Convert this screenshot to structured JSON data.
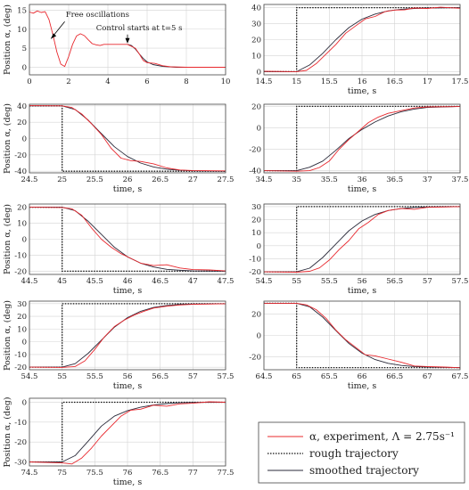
{
  "colors": {
    "experiment": "#e8282e",
    "rough": "#111111",
    "smoothed": "#2a2a3a",
    "grid": "#d4d4d4",
    "axis": "#444444"
  },
  "legend": {
    "experiment": "α, experiment, Λ = 2.75s⁻¹",
    "rough": "rough trajectory",
    "smoothed": "smoothed trajectory"
  },
  "chart_data": [
    {
      "type": "line",
      "ylabel": "Position α, (deg)",
      "xlabel": "",
      "xlim": [
        0,
        10
      ],
      "ylim": [
        -2,
        16.5
      ],
      "xticks": [
        0,
        2,
        4,
        6,
        8,
        10
      ],
      "yticks": [
        0,
        5,
        10,
        15
      ],
      "annotations": [
        {
          "text": "Free oscillations",
          "arrow_to": [
            1.1,
            7.5
          ]
        },
        {
          "text": "Control starts at t=5 s",
          "arrow_to": [
            5,
            6.5
          ]
        }
      ],
      "series": [
        {
          "name": "experiment",
          "style": "experiment",
          "x": [
            0,
            0.2,
            0.4,
            0.6,
            0.8,
            1.0,
            1.2,
            1.4,
            1.6,
            1.8,
            2.0,
            2.2,
            2.4,
            2.6,
            2.8,
            3.0,
            3.2,
            3.4,
            3.6,
            3.8,
            4.0,
            4.5,
            5.0,
            5.2,
            5.4,
            5.6,
            5.8,
            6.0,
            6.4,
            6.8,
            7.2,
            8.0,
            9.0,
            10.0
          ],
          "y": [
            14.5,
            14.2,
            14.8,
            14.4,
            14.6,
            12.5,
            8.5,
            4.0,
            0.8,
            0.2,
            2.8,
            6.0,
            8.2,
            8.8,
            8.3,
            7.2,
            6.2,
            5.9,
            5.7,
            6.0,
            6.0,
            6.0,
            6.0,
            5.5,
            5.0,
            3.5,
            1.8,
            1.2,
            1.0,
            0.4,
            0.1,
            0.0,
            0.0,
            0.0
          ]
        },
        {
          "name": "smoothed",
          "style": "smoothed",
          "x": [
            5.0,
            5.2,
            5.4,
            5.6,
            5.8,
            6.0,
            6.3,
            6.8,
            7.5,
            8.0
          ],
          "y": [
            6.0,
            5.7,
            4.8,
            3.5,
            2.3,
            1.4,
            0.7,
            0.2,
            0.0,
            0.0
          ]
        }
      ]
    },
    {
      "type": "line",
      "ylabel": "",
      "xlabel": "time, s",
      "xlim": [
        14.5,
        17.5
      ],
      "ylim": [
        -2,
        42
      ],
      "xticks": [
        14.5,
        15,
        15.5,
        16,
        16.5,
        17,
        17.5
      ],
      "yticks": [
        0,
        10,
        20,
        30,
        40
      ],
      "series": [
        {
          "name": "rough",
          "style": "rough",
          "x": [
            14.5,
            15.0,
            15.0,
            17.5
          ],
          "y": [
            0,
            0,
            40,
            40
          ]
        },
        {
          "name": "smoothed",
          "style": "smoothed",
          "x": [
            14.5,
            15.0,
            15.2,
            15.4,
            15.6,
            15.8,
            16.0,
            16.2,
            16.4,
            16.6,
            16.8,
            17.0,
            17.5
          ],
          "y": [
            0,
            0,
            4.2,
            11.5,
            20.0,
            27.5,
            32.8,
            36.0,
            38.0,
            39.0,
            39.5,
            39.8,
            40.0
          ]
        },
        {
          "name": "experiment",
          "style": "experiment",
          "x": [
            14.5,
            15.0,
            15.15,
            15.3,
            15.45,
            15.6,
            15.75,
            15.9,
            16.05,
            16.2,
            16.35,
            16.5,
            16.65,
            16.8,
            17.0,
            17.2,
            17.5
          ],
          "y": [
            0.2,
            0.0,
            0.8,
            5.0,
            11.0,
            17.0,
            24.0,
            28.5,
            33.0,
            34.5,
            37.5,
            38.5,
            38.6,
            39.8,
            39.5,
            40.3,
            39.6
          ]
        }
      ]
    },
    {
      "type": "line",
      "ylabel": "Position α, (deg)",
      "xlabel": "time, s",
      "xlim": [
        24.5,
        27.5
      ],
      "ylim": [
        -42,
        42
      ],
      "xticks": [
        24.5,
        25,
        25.5,
        26,
        26.5,
        27,
        27.5
      ],
      "yticks": [
        -40,
        -20,
        0,
        20,
        40
      ],
      "series": [
        {
          "name": "rough",
          "style": "rough",
          "x": [
            24.5,
            25.0,
            25.0,
            27.5
          ],
          "y": [
            40,
            40,
            -40,
            -40
          ]
        },
        {
          "name": "smoothed",
          "style": "smoothed",
          "x": [
            24.5,
            25.0,
            25.2,
            25.4,
            25.6,
            25.8,
            26.0,
            26.2,
            26.4,
            26.6,
            26.8,
            27.0,
            27.5
          ],
          "y": [
            40,
            40,
            35.6,
            22.5,
            6.0,
            -10.0,
            -22.0,
            -30.0,
            -34.8,
            -37.5,
            -38.8,
            -39.5,
            -40.0
          ]
        },
        {
          "name": "experiment",
          "style": "experiment",
          "x": [
            24.5,
            25.0,
            25.15,
            25.3,
            25.45,
            25.6,
            25.75,
            25.9,
            26.05,
            26.2,
            26.4,
            26.6,
            26.8,
            27.0,
            27.5
          ],
          "y": [
            40.2,
            40,
            38.0,
            30.0,
            18.0,
            5.0,
            -12.0,
            -24.0,
            -27.0,
            -28.0,
            -31.0,
            -36.0,
            -38.5,
            -39.2,
            -39.6
          ]
        }
      ]
    },
    {
      "type": "line",
      "ylabel": "",
      "xlabel": "time, s",
      "xlim": [
        34.5,
        37.5
      ],
      "ylim": [
        -42,
        22
      ],
      "xticks": [
        34.5,
        35,
        35.5,
        36,
        36.5,
        37,
        37.5
      ],
      "yticks": [
        -40,
        -20,
        0,
        20
      ],
      "series": [
        {
          "name": "rough",
          "style": "rough",
          "x": [
            34.5,
            35.0,
            35.0,
            37.5
          ],
          "y": [
            -40,
            -40,
            20,
            20
          ]
        },
        {
          "name": "smoothed",
          "style": "smoothed",
          "x": [
            34.5,
            35.0,
            35.2,
            35.4,
            35.6,
            35.8,
            36.0,
            36.2,
            36.4,
            36.6,
            36.8,
            37.0,
            37.5
          ],
          "y": [
            -40,
            -40,
            -36.8,
            -31.0,
            -21.0,
            -10.0,
            -1.5,
            5.5,
            11.0,
            15.0,
            17.5,
            19.0,
            20.0
          ]
        },
        {
          "name": "experiment",
          "style": "experiment",
          "x": [
            34.5,
            35.0,
            35.2,
            35.35,
            35.5,
            35.65,
            35.8,
            35.95,
            36.1,
            36.25,
            36.4,
            36.6,
            36.8,
            37.0,
            37.5
          ],
          "y": [
            -40,
            -40.5,
            -40.0,
            -37.0,
            -31.0,
            -20.0,
            -11.0,
            -3.0,
            5.0,
            10.0,
            13.5,
            16.0,
            18.5,
            19.5,
            19.8
          ]
        }
      ]
    },
    {
      "type": "line",
      "ylabel": "Position α, (deg)",
      "xlabel": "time, s",
      "xlim": [
        44.5,
        47.5
      ],
      "ylim": [
        -22,
        22
      ],
      "xticks": [
        44.5,
        45,
        45.5,
        46,
        46.5,
        47,
        47.5
      ],
      "yticks": [
        -20,
        -10,
        0,
        10,
        20
      ],
      "series": [
        {
          "name": "rough",
          "style": "rough",
          "x": [
            44.5,
            45.0,
            45.0,
            47.5
          ],
          "y": [
            20,
            20,
            -20,
            -20
          ]
        },
        {
          "name": "smoothed",
          "style": "smoothed",
          "x": [
            44.5,
            45.0,
            45.2,
            45.4,
            45.6,
            45.8,
            46.0,
            46.2,
            46.4,
            46.6,
            46.8,
            47.0,
            47.5
          ],
          "y": [
            20,
            20,
            17.8,
            11.2,
            3.0,
            -5.0,
            -11.0,
            -15.0,
            -17.4,
            -18.8,
            -19.4,
            -19.8,
            -20.0
          ]
        },
        {
          "name": "experiment",
          "style": "experiment",
          "x": [
            44.5,
            45.0,
            45.15,
            45.3,
            45.45,
            45.6,
            45.75,
            45.9,
            46.05,
            46.2,
            46.4,
            46.6,
            46.8,
            47.0,
            47.25,
            47.5
          ],
          "y": [
            20,
            19.8,
            19.0,
            15.0,
            7.0,
            0.0,
            -5.0,
            -9.0,
            -12.0,
            -15.0,
            -16.5,
            -16.0,
            -18.0,
            -19.0,
            -19.2,
            -19.8
          ]
        }
      ]
    },
    {
      "type": "line",
      "ylabel": "",
      "xlabel": "time, s",
      "xlim": [
        54.5,
        57.5
      ],
      "ylim": [
        -22,
        32
      ],
      "xticks": [
        54.5,
        55,
        55.5,
        56,
        56.5,
        57,
        57.5
      ],
      "yticks": [
        -20,
        -10,
        0,
        10,
        20,
        30
      ],
      "series": [
        {
          "name": "rough",
          "style": "rough",
          "x": [
            54.5,
            55.0,
            55.0,
            57.5
          ],
          "y": [
            -20,
            -20,
            30,
            30
          ]
        },
        {
          "name": "smoothed",
          "style": "smoothed",
          "x": [
            54.5,
            55.0,
            55.2,
            55.4,
            55.6,
            55.8,
            56.0,
            56.2,
            56.4,
            56.6,
            56.8,
            57.0,
            57.5
          ],
          "y": [
            -20,
            -20,
            -17.2,
            -9.0,
            1.3,
            11.5,
            19.0,
            24.0,
            27.0,
            28.5,
            29.4,
            29.7,
            30.0
          ]
        },
        {
          "name": "experiment",
          "style": "experiment",
          "x": [
            54.5,
            55.0,
            55.2,
            55.35,
            55.5,
            55.65,
            55.8,
            55.95,
            56.1,
            56.25,
            56.4,
            56.6,
            56.8,
            57.0,
            57.5
          ],
          "y": [
            -20,
            -20.3,
            -19.6,
            -17.0,
            -11.0,
            -3.0,
            4.0,
            13.0,
            18.0,
            24.0,
            27.0,
            28.5,
            28.0,
            29.5,
            30.0
          ]
        }
      ]
    },
    {
      "type": "line",
      "ylabel": "Position α, (deg)",
      "xlabel": "time, s",
      "xlim": [
        54.5,
        57.5
      ],
      "ylim": [
        -22,
        32
      ],
      "xticks": [
        54.5,
        55,
        55.5,
        56,
        56.5,
        57,
        57.5
      ],
      "yticks": [
        -20,
        -10,
        0,
        10,
        20,
        30
      ],
      "series": [
        {
          "name": "rough",
          "style": "rough",
          "x": [
            54.5,
            55.0,
            55.0,
            57.5
          ],
          "y": [
            -20,
            -20,
            30,
            30
          ]
        },
        {
          "name": "smoothed",
          "style": "smoothed",
          "x": [
            54.5,
            55.0,
            55.2,
            55.4,
            55.6,
            55.8,
            56.0,
            56.2,
            56.4,
            56.6,
            56.8,
            57.0,
            57.5
          ],
          "y": [
            -20,
            -20,
            -17.2,
            -9.0,
            1.3,
            11.5,
            19.0,
            24.0,
            27.0,
            28.5,
            29.4,
            29.7,
            30.0
          ]
        },
        {
          "name": "experiment",
          "style": "experiment",
          "x": [
            54.5,
            55.0,
            55.2,
            55.35,
            55.5,
            55.65,
            55.8,
            55.95,
            56.1,
            56.25,
            56.4,
            56.6,
            56.8,
            57.0,
            57.5
          ],
          "y": [
            -20,
            -20.2,
            -19.5,
            -15.0,
            -6.0,
            4.0,
            12.0,
            17.0,
            21.0,
            24.0,
            26.5,
            28.0,
            29.0,
            29.5,
            30.0
          ]
        }
      ]
    },
    {
      "type": "line",
      "ylabel": "",
      "xlabel": "time, s",
      "xlim": [
        64.5,
        67.5
      ],
      "ylim": [
        -32,
        32
      ],
      "xticks": [
        64.5,
        65,
        65.5,
        66,
        66.5,
        67,
        67.5
      ],
      "yticks": [
        -20,
        0,
        20
      ],
      "series": [
        {
          "name": "rough",
          "style": "rough",
          "x": [
            64.5,
            65.0,
            65.0,
            67.5
          ],
          "y": [
            30,
            30,
            -30,
            -30
          ]
        },
        {
          "name": "smoothed",
          "style": "smoothed",
          "x": [
            64.5,
            65.0,
            65.2,
            65.4,
            65.6,
            65.8,
            66.0,
            66.2,
            66.4,
            66.6,
            66.8,
            67.0,
            67.5
          ],
          "y": [
            30,
            30,
            26.7,
            17.0,
            4.5,
            -7.5,
            -16.5,
            -22.5,
            -26.0,
            -28.0,
            -29.0,
            -29.6,
            -30.0
          ]
        },
        {
          "name": "experiment",
          "style": "experiment",
          "x": [
            64.5,
            65.0,
            65.15,
            65.3,
            65.45,
            65.6,
            65.75,
            65.9,
            66.05,
            66.2,
            66.4,
            66.6,
            66.8,
            67.0,
            67.25,
            67.5
          ],
          "y": [
            30,
            30,
            28.5,
            24.0,
            16.0,
            5.0,
            -4.0,
            -11.0,
            -18.0,
            -19.0,
            -22.0,
            -25.0,
            -28.5,
            -29.0,
            -29.5,
            -30.2
          ]
        }
      ]
    },
    {
      "type": "line",
      "ylabel": "Position α, (deg)",
      "xlabel": "time, s",
      "xlim": [
        74.5,
        77.5
      ],
      "ylim": [
        -32,
        2
      ],
      "xticks": [
        74.5,
        75,
        75.5,
        76,
        76.5,
        77,
        77.5
      ],
      "yticks": [
        -30,
        -20,
        -10,
        0
      ],
      "series": [
        {
          "name": "rough",
          "style": "rough",
          "x": [
            74.5,
            75.0,
            75.0,
            77.5
          ],
          "y": [
            -30,
            -30,
            0,
            0
          ]
        },
        {
          "name": "smoothed",
          "style": "smoothed",
          "x": [
            74.5,
            75.0,
            75.2,
            75.4,
            75.6,
            75.8,
            76.0,
            76.2,
            76.4,
            76.6,
            76.8,
            77.0,
            77.5
          ],
          "y": [
            -30,
            -30,
            -26.8,
            -19.5,
            -12.0,
            -7.0,
            -4.2,
            -2.5,
            -1.4,
            -0.7,
            -0.3,
            -0.1,
            0.0
          ]
        },
        {
          "name": "experiment",
          "style": "experiment",
          "x": [
            74.5,
            75.0,
            75.15,
            75.3,
            75.45,
            75.6,
            75.75,
            75.9,
            76.05,
            76.2,
            76.4,
            76.6,
            76.8,
            77.0,
            77.25,
            77.5
          ],
          "y": [
            -30,
            -30.5,
            -31.0,
            -28.0,
            -23.0,
            -17.0,
            -12.0,
            -7.0,
            -4.0,
            -3.5,
            -1.5,
            -2.0,
            -0.8,
            -0.5,
            0.2,
            0.0
          ]
        }
      ]
    }
  ]
}
